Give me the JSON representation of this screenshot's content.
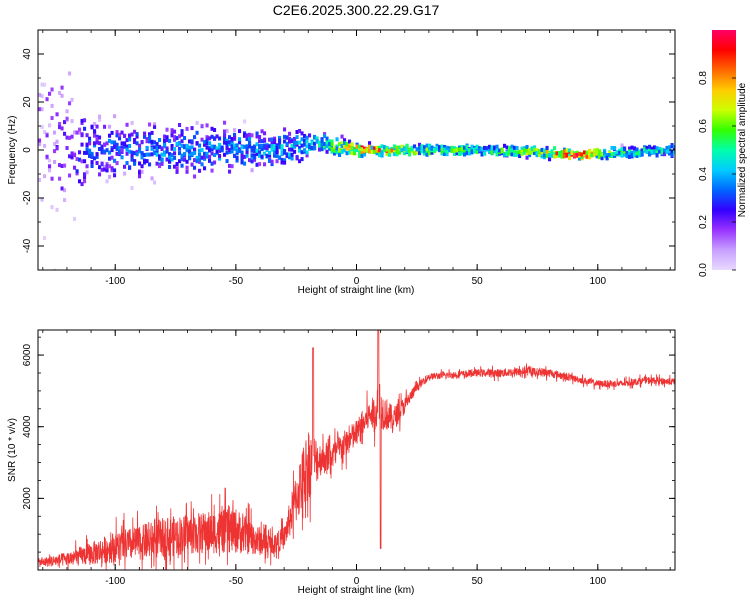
{
  "title": "C2E6.2025.300.22.29.G17",
  "chart_data": [
    {
      "type": "heatmap",
      "panel": "spectrogram",
      "xlabel": "Height of straight line (km)",
      "ylabel": "Frequency (Hz)",
      "xlim": [
        -132,
        132
      ],
      "ylim": [
        -50,
        50
      ],
      "x_ticks": [
        "-100",
        "-50",
        "0",
        "50",
        "100"
      ],
      "x_tick_values": [
        -100,
        -50,
        0,
        50,
        100
      ],
      "y_ticks": [
        "40",
        "20",
        "0",
        "-20",
        "-40"
      ],
      "y_tick_values": [
        40,
        20,
        0,
        -20,
        -40
      ],
      "colorbar": {
        "label": "Normalized spectral amplitude",
        "range": [
          0,
          1
        ],
        "ticks": [
          "0.0",
          "0.2",
          "0.4",
          "0.6",
          "0.8"
        ],
        "tick_values": [
          0,
          0.2,
          0.4,
          0.6,
          0.8
        ],
        "colormap": [
          "#e8d9ff",
          "#c7a0ff",
          "#9933ff",
          "#3300ff",
          "#0066ff",
          "#00ccff",
          "#00ffaa",
          "#33ff00",
          "#ccff00",
          "#ffcc00",
          "#ff6600",
          "#ff0000",
          "#ff0066"
        ]
      },
      "description_points": [
        {
          "x": -130,
          "center": 0,
          "spread": 45,
          "level": 0.15
        },
        {
          "x": -110,
          "center": 0,
          "spread": 12,
          "level": 0.3
        },
        {
          "x": -80,
          "center": 0,
          "spread": 10,
          "level": 0.35
        },
        {
          "x": -50,
          "center": 0,
          "spread": 9,
          "level": 0.35
        },
        {
          "x": -25,
          "center": 1,
          "spread": 6,
          "level": 0.4
        },
        {
          "x": -15,
          "center": 3,
          "spread": 4,
          "level": 0.45
        },
        {
          "x": 0,
          "center": 0,
          "spread": 2,
          "level": 0.85
        },
        {
          "x": 25,
          "center": 0,
          "spread": 2,
          "level": 0.6
        },
        {
          "x": 50,
          "center": 0,
          "spread": 2,
          "level": 0.5
        },
        {
          "x": 75,
          "center": -1,
          "spread": 2,
          "level": 0.6
        },
        {
          "x": 90,
          "center": -2,
          "spread": 1.5,
          "level": 0.95
        },
        {
          "x": 110,
          "center": -1,
          "spread": 2,
          "level": 0.5
        },
        {
          "x": 130,
          "center": 0,
          "spread": 2,
          "level": 0.45
        }
      ]
    },
    {
      "type": "line",
      "panel": "snr",
      "xlabel": "Height of straight line (km)",
      "ylabel": "SNR (10 * v/v)",
      "xlim": [
        -132,
        132
      ],
      "ylim": [
        0,
        6700
      ],
      "x_ticks": [
        "-100",
        "-50",
        "0",
        "50",
        "100"
      ],
      "x_tick_values": [
        -100,
        -50,
        0,
        50,
        100
      ],
      "y_ticks": [
        "2000",
        "4000",
        "6000"
      ],
      "y_tick_values": [
        2000,
        4000,
        6000
      ],
      "color": "#ee3333",
      "series": [
        {
          "name": "SNR",
          "x": [
            -132,
            -120,
            -110,
            -100,
            -90,
            -80,
            -70,
            -60,
            -50,
            -40,
            -35,
            -30,
            -25,
            -20,
            -15,
            -10,
            -5,
            0,
            5,
            10,
            15,
            20,
            25,
            30,
            40,
            50,
            60,
            70,
            80,
            90,
            100,
            110,
            120,
            132
          ],
          "values": [
            200,
            300,
            450,
            650,
            750,
            900,
            1000,
            1050,
            1100,
            800,
            700,
            900,
            2000,
            3000,
            3100,
            3200,
            3500,
            3800,
            4300,
            4500,
            4200,
            4600,
            5100,
            5400,
            5450,
            5500,
            5500,
            5550,
            5500,
            5350,
            5200,
            5200,
            5300,
            5250
          ],
          "noise": [
            150,
            250,
            400,
            550,
            600,
            700,
            700,
            750,
            800,
            500,
            350,
            400,
            900,
            1300,
            600,
            500,
            500,
            500,
            500,
            700,
            450,
            300,
            150,
            120,
            120,
            130,
            150,
            150,
            150,
            120,
            120,
            120,
            120,
            120
          ]
        }
      ],
      "annotations": [
        {
          "x": -18,
          "value": 6200,
          "label": ""
        },
        {
          "x": 9,
          "value": 6700,
          "label": ""
        },
        {
          "x": 10,
          "value": 600,
          "label": ""
        }
      ]
    }
  ]
}
